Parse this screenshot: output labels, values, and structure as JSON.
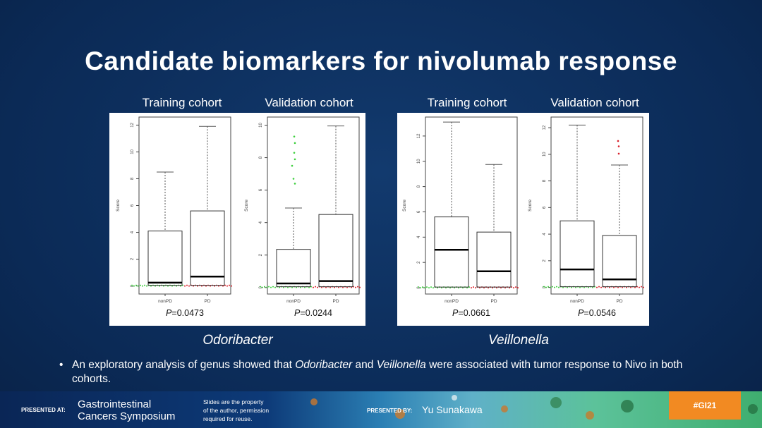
{
  "title": "Candidate biomarkers for nivolumab response",
  "colors": {
    "background": "#0c2b58",
    "nonPD_points": "#3ccf3c",
    "PD_points": "#d8202a",
    "highlight_points": "#1a2fc0",
    "tag": "#f28a22"
  },
  "groups": [
    {
      "genus": "Odoribacter",
      "cohorts": [
        "Training cohort",
        "Validation cohort"
      ]
    },
    {
      "genus": "Veillonella",
      "cohorts": [
        "Training cohort",
        "Validation cohort"
      ]
    }
  ],
  "chart_data": [
    {
      "type": "box",
      "genus": "Odoribacter",
      "cohort": "Training cohort",
      "ylabel": "Score",
      "categories": [
        "nonPD",
        "PD"
      ],
      "yticks": [
        0,
        2,
        4,
        6,
        8,
        10,
        12
      ],
      "ylim": [
        -0.6,
        12.6
      ],
      "p_prefix": "P",
      "p_value": "=0.0473",
      "boxes": [
        {
          "min": 0,
          "q1": 0.05,
          "median": 0.25,
          "q3": 4.1,
          "max": 8.5
        },
        {
          "min": 0,
          "q1": 0.05,
          "median": 0.7,
          "q3": 5.6,
          "max": 11.9
        }
      ]
    },
    {
      "type": "box",
      "genus": "Odoribacter",
      "cohort": "Validation cohort",
      "ylabel": "Score",
      "categories": [
        "nonPD",
        "PD"
      ],
      "yticks": [
        0,
        2,
        4,
        6,
        8,
        10
      ],
      "ylim": [
        -0.4,
        10.5
      ],
      "p_prefix": "P",
      "p_value": "=0.0244",
      "boxes": [
        {
          "min": 0,
          "q1": 0.05,
          "median": 0.25,
          "q3": 2.35,
          "max": 4.9,
          "outliers": [
            6.4,
            6.7,
            7.5,
            7.9,
            8.3,
            8.9,
            9.3
          ]
        },
        {
          "min": 0,
          "q1": 0.05,
          "median": 0.4,
          "q3": 4.5,
          "max": 9.95
        }
      ]
    },
    {
      "type": "box",
      "genus": "Veillonella",
      "cohort": "Training cohort",
      "ylabel": "Score",
      "categories": [
        "nonPD",
        "PD"
      ],
      "yticks": [
        0,
        2,
        4,
        6,
        8,
        10,
        12
      ],
      "ylim": [
        -0.5,
        13.5
      ],
      "p_prefix": "P",
      "p_value": "=0.0661",
      "boxes": [
        {
          "min": 0,
          "q1": 0.05,
          "median": 3.0,
          "q3": 5.6,
          "max": 13.1
        },
        {
          "min": 0,
          "q1": 0.05,
          "median": 1.3,
          "q3": 4.4,
          "max": 9.75
        }
      ]
    },
    {
      "type": "box",
      "genus": "Veillonella",
      "cohort": "Validation cohort",
      "ylabel": "Score",
      "categories": [
        "nonPD",
        "PD"
      ],
      "yticks": [
        0,
        2,
        4,
        6,
        8,
        10,
        12
      ],
      "ylim": [
        -0.5,
        12.8
      ],
      "p_prefix": "P",
      "p_value": "=0.0546",
      "boxes": [
        {
          "min": 0,
          "q1": 0.05,
          "median": 1.35,
          "q3": 5.0,
          "max": 12.2
        },
        {
          "min": 0,
          "q1": 0.05,
          "median": 0.6,
          "q3": 3.9,
          "max": 9.2,
          "outliers": [
            10.05,
            10.6,
            11.0
          ]
        }
      ]
    }
  ],
  "bullet": {
    "part1": "An exploratory analysis of genus showed that ",
    "genus1": "Odoribacter",
    "part2": " and ",
    "genus2": "Veillonella",
    "part3": " were associated with tumor response to Nivo in both cohorts."
  },
  "footer": {
    "presented_at": "PRESENTED AT:",
    "symposium_line1": "Gastrointestinal",
    "symposium_line2": "Cancers Symposium",
    "notice_line1": "Slides are the property",
    "notice_line2": "of the author, permission",
    "notice_line3": "required for reuse.",
    "presented_by": "PRESENTED BY:",
    "presenter": "Yu Sunakawa",
    "hashtag": "#GI21"
  }
}
